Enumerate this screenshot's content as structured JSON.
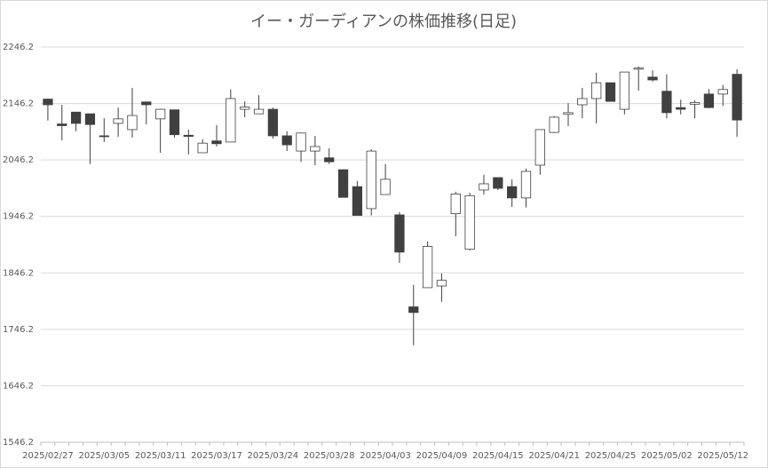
{
  "chart_data": {
    "type": "candlestick",
    "title": "イー・ガーディアンの株価推移(日足)",
    "categories": [
      "2025/02/27",
      null,
      null,
      null,
      "2025/03/05",
      null,
      null,
      null,
      "2025/03/11",
      null,
      null,
      null,
      "2025/03/17",
      null,
      null,
      null,
      "2025/03/24",
      null,
      null,
      null,
      "2025/03/28",
      null,
      null,
      null,
      "2025/04/03",
      null,
      null,
      null,
      "2025/04/09",
      null,
      null,
      null,
      "2025/04/15",
      null,
      null,
      null,
      "2025/04/21",
      null,
      null,
      null,
      "2025/04/25",
      null,
      null,
      null,
      "2025/05/02",
      null,
      null,
      null,
      "2025/05/12",
      null
    ],
    "open": [
      2154,
      2110,
      2131,
      2128,
      2089,
      2111,
      2100,
      2149,
      2119,
      2135,
      2090,
      2059,
      2080,
      2078,
      2136,
      2128,
      2136,
      2089,
      2062,
      2062,
      2050,
      2029,
      1999,
      1960,
      1985,
      1949,
      1786,
      1820,
      1823,
      1951,
      1888,
      1993,
      2015,
      1999,
      1979,
      2037,
      2095,
      2127,
      2144,
      2155,
      2183,
      2136,
      2207,
      2193,
      2168,
      2139,
      2145,
      2163,
      2163,
      2198
    ],
    "high": [
      2155,
      2144,
      2131,
      2128,
      2120,
      2139,
      2174,
      2149,
      2137,
      2135,
      2100,
      2083,
      2108,
      2171,
      2150,
      2161,
      2139,
      2097,
      2094,
      2089,
      2067,
      2029,
      2009,
      2065,
      2039,
      1954,
      1825,
      1902,
      1845,
      1990,
      1988,
      2020,
      2015,
      2012,
      2031,
      2100,
      2124,
      2147,
      2174,
      2201,
      2183,
      2202,
      2212,
      2205,
      2198,
      2153,
      2152,
      2172,
      2179,
      2207
    ],
    "low": [
      2116,
      2081,
      2097,
      2039,
      2078,
      2087,
      2086,
      2109,
      2059,
      2086,
      2056,
      2059,
      2070,
      2078,
      2122,
      2128,
      2084,
      2062,
      2043,
      2037,
      2039,
      1980,
      1948,
      1948,
      1985,
      1864,
      1718,
      1820,
      1795,
      1911,
      1886,
      1985,
      1993,
      1963,
      1962,
      2020,
      2094,
      2106,
      2120,
      2111,
      2150,
      2127,
      2169,
      2185,
      2120,
      2127,
      2120,
      2138,
      2142,
      2087
    ],
    "close": [
      2144,
      2107,
      2111,
      2109,
      2088,
      2119,
      2125,
      2144,
      2136,
      2091,
      2088,
      2076,
      2075,
      2155,
      2140,
      2136,
      2089,
      2073,
      2094,
      2070,
      2043,
      1980,
      1948,
      2062,
      2012,
      1883,
      1776,
      1893,
      1833,
      1986,
      1983,
      2004,
      1996,
      1979,
      2026,
      2100,
      2122,
      2130,
      2155,
      2183,
      2150,
      2202,
      2209,
      2188,
      2130,
      2136,
      2148,
      2139,
      2171,
      2117
    ],
    "up_color": "#ffffff",
    "down_color": "#404040",
    "edge_color": "#404040",
    "ylim": [
      1546.2,
      2246.2
    ],
    "yticks": [
      1546.2,
      1646.2,
      1746.2,
      1846.2,
      1946.2,
      2046.2,
      2146.2,
      2246.2
    ],
    "grid": true
  }
}
